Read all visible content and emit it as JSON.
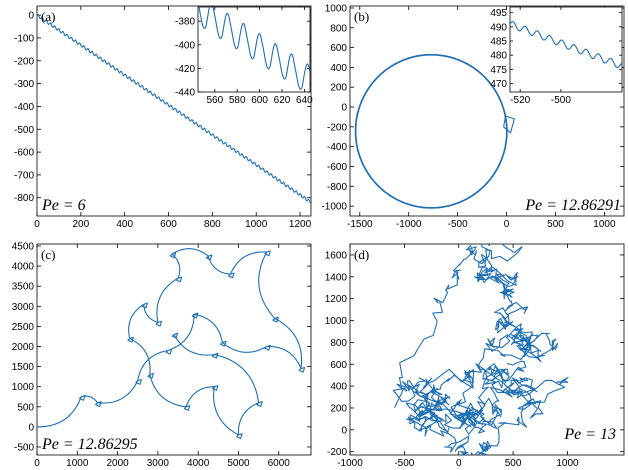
{
  "chart_data": [
    {
      "type": "line",
      "panel_label": "(a)",
      "annotation": "Pe = 6",
      "xlim": [
        0,
        1250
      ],
      "ylim": [
        -880,
        40
      ],
      "xticks": [
        0,
        200,
        400,
        600,
        800,
        1000,
        1200
      ],
      "yticks": [
        0,
        -100,
        -200,
        -300,
        -400,
        -500,
        -600,
        -700,
        -800
      ],
      "trajectory": {
        "shape": "straight line with small periodic wiggles",
        "start": [
          0,
          0
        ],
        "end": [
          1250,
          -820
        ]
      },
      "inset": {
        "xlim": [
          545,
          645
        ],
        "ylim": [
          -440,
          -368
        ],
        "xticks": [
          560,
          580,
          600,
          620,
          640
        ],
        "yticks": [
          -380,
          -400,
          -420,
          -440
        ]
      }
    },
    {
      "type": "line",
      "panel_label": "(b)",
      "annotation": "Pe = 12.86291",
      "xlim": [
        -1600,
        1200
      ],
      "ylim": [
        -1100,
        1020
      ],
      "xticks": [
        -1500,
        -1000,
        -500,
        0,
        500,
        1000
      ],
      "yticks": [
        1000,
        800,
        600,
        400,
        200,
        0,
        -200,
        -400,
        -600,
        -800,
        -1000
      ],
      "trajectory": {
        "shape": "closed circular orbit",
        "center": [
          -770,
          -245
        ],
        "radius": 770
      },
      "inset": {
        "xlim": [
          -525,
          -470
        ],
        "ylim": [
          467,
          497
        ],
        "xticks": [
          -520,
          -500
        ],
        "yticks": [
          495,
          490,
          485,
          480,
          475,
          470
        ]
      }
    },
    {
      "type": "line",
      "panel_label": "(c)",
      "annotation": "Pe = 12.86295",
      "xlim": [
        0,
        6800
      ],
      "ylim": [
        -700,
        4550
      ],
      "xticks": [
        0,
        1000,
        2000,
        3000,
        4000,
        5000,
        6000
      ],
      "yticks": [
        4500,
        4000,
        3500,
        3000,
        2500,
        2000,
        1500,
        1000,
        500,
        0,
        -500
      ],
      "trajectory": {
        "shape": "chain of circular arcs with small loops at the turning points",
        "points": [
          [
            0,
            0
          ],
          [
            1100,
            750
          ],
          [
            1500,
            600
          ],
          [
            2500,
            1150
          ],
          [
            3250,
            1900
          ],
          [
            3900,
            2800
          ],
          [
            4600,
            2100
          ],
          [
            5700,
            2000
          ],
          [
            6550,
            1450
          ],
          [
            5900,
            2700
          ],
          [
            5700,
            4350
          ],
          [
            4800,
            3800
          ],
          [
            4250,
            4250
          ],
          [
            3350,
            4300
          ],
          [
            3500,
            3700
          ],
          [
            3000,
            2600
          ],
          [
            2650,
            3050
          ],
          [
            2300,
            2200
          ],
          [
            2800,
            1300
          ],
          [
            3700,
            500
          ],
          [
            4400,
            1000
          ],
          [
            5000,
            -200
          ],
          [
            5500,
            600
          ],
          [
            4400,
            1800
          ],
          [
            3400,
            2300
          ]
        ]
      }
    },
    {
      "type": "line",
      "panel_label": "(d)",
      "annotation": "Pe = 13",
      "xlim": [
        -1000,
        1520
      ],
      "ylim": [
        -230,
        1700
      ],
      "xticks": [
        -1000,
        -500,
        0,
        500,
        1000
      ],
      "yticks": [
        1600,
        1400,
        1200,
        1000,
        800,
        600,
        400,
        200,
        0,
        -200
      ],
      "trajectory": {
        "shape": "random-walk-like chaotic trajectory",
        "x_extent": [
          -650,
          1050
        ],
        "y_extent": [
          -200,
          1640
        ]
      }
    }
  ]
}
